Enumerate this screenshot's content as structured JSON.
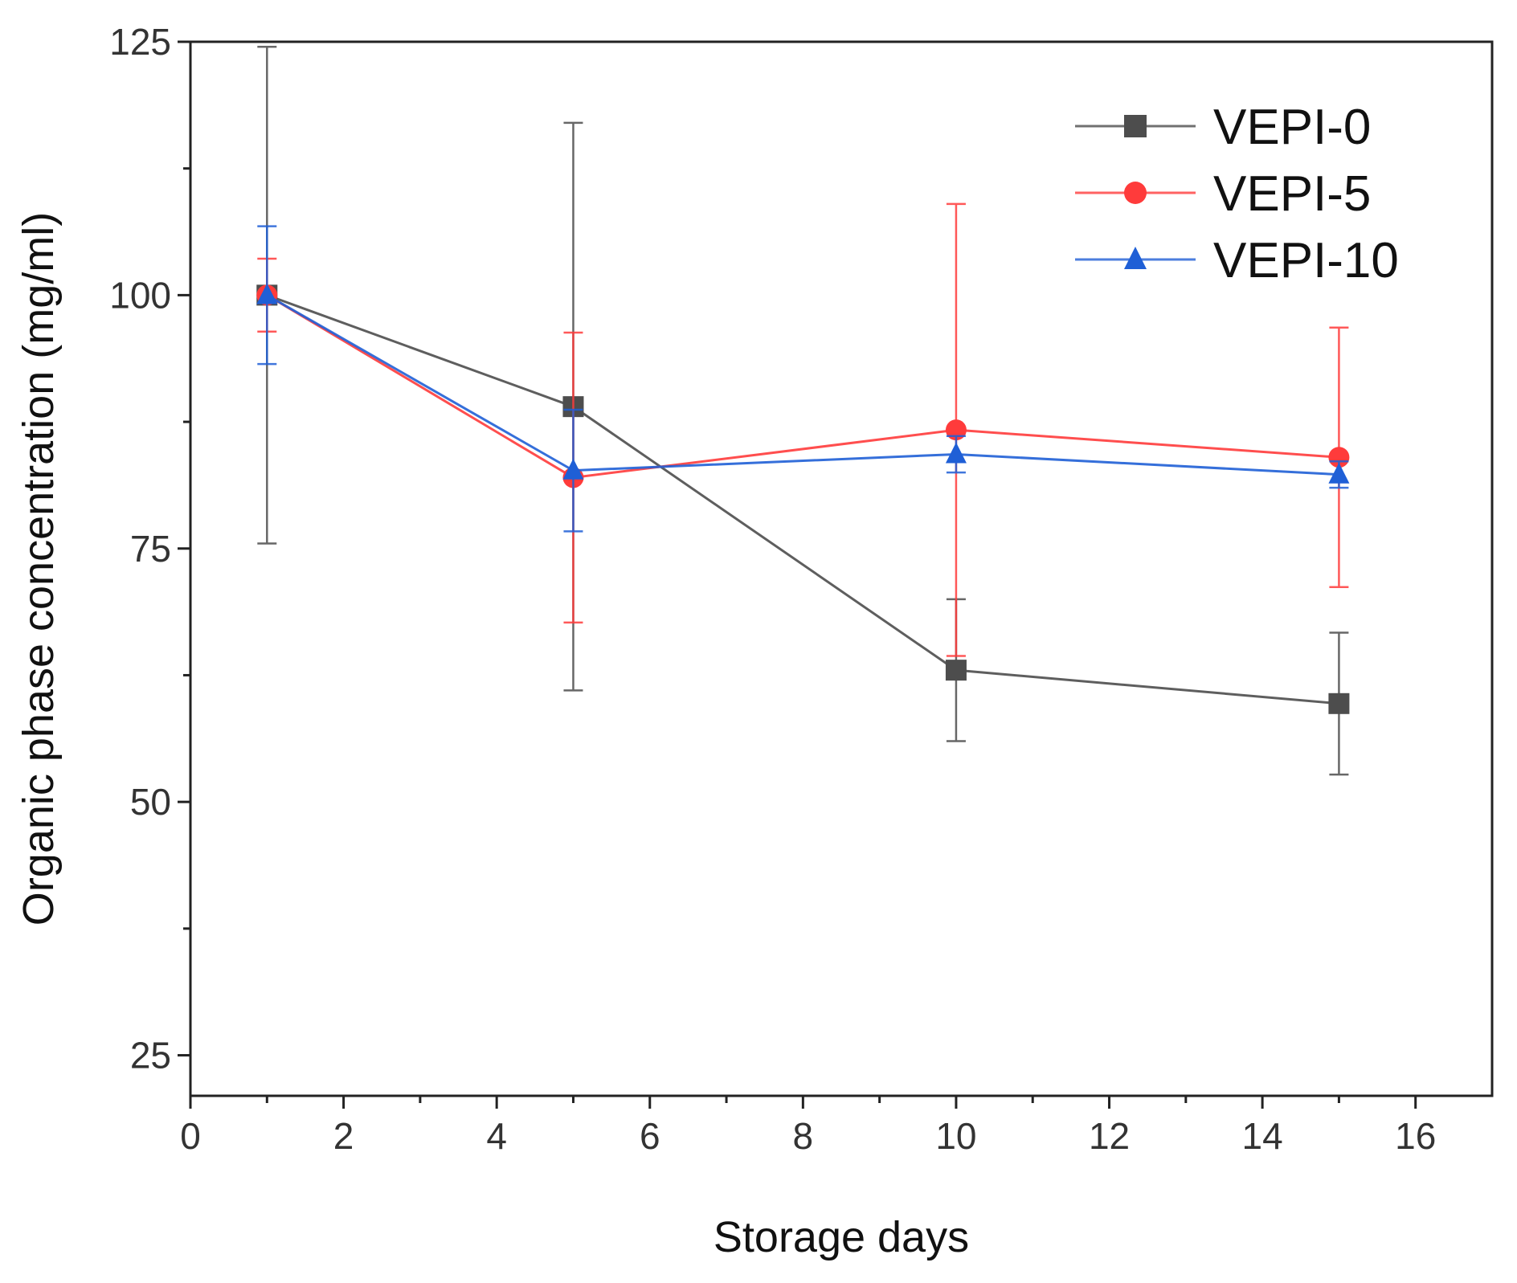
{
  "chart_data": {
    "type": "line",
    "title": "",
    "xlabel": "Storage days",
    "ylabel": "Organic phase concentration (mg/ml)",
    "xlim": [
      0,
      17
    ],
    "ylim": [
      21,
      125
    ],
    "x_ticks": [
      0,
      2,
      4,
      6,
      8,
      10,
      12,
      14,
      16
    ],
    "x_tick_labels": [
      "0",
      "2",
      "4",
      "6",
      "8",
      "10",
      "12",
      "14",
      "16"
    ],
    "y_ticks": [
      25,
      50,
      75,
      100,
      125
    ],
    "y_tick_labels": [
      "25",
      "50",
      "75",
      "100",
      "125"
    ],
    "grid": false,
    "legend_position": "top-right",
    "x": [
      1,
      5,
      10,
      15
    ],
    "series": [
      {
        "name": "VEPI-0",
        "color": "#4d4d4d",
        "marker": "square",
        "values": [
          100,
          89,
          63,
          59.7
        ],
        "error": [
          24.5,
          28,
          7,
          7
        ]
      },
      {
        "name": "VEPI-5",
        "color": "#ff3b3b",
        "marker": "circle",
        "values": [
          100,
          82,
          86.7,
          84
        ],
        "error": [
          3.6,
          14.3,
          22.3,
          12.8
        ]
      },
      {
        "name": "VEPI-10",
        "color": "#1f5fd6",
        "marker": "triangle",
        "values": [
          100,
          82.7,
          84.3,
          82.3
        ],
        "error": [
          6.8,
          6,
          1.8,
          1.3
        ]
      }
    ]
  }
}
